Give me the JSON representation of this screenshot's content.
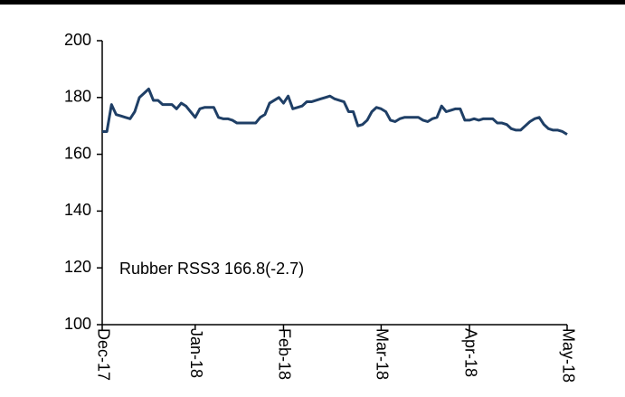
{
  "chart_data": {
    "type": "line",
    "annotation": "Rubber RSS3 166.8(-2.7)",
    "categories": [
      "Dec-17",
      null,
      null,
      null,
      null,
      null,
      null,
      null,
      null,
      null,
      null,
      null,
      null,
      null,
      null,
      null,
      null,
      null,
      null,
      null,
      "Jan-18",
      null,
      null,
      null,
      null,
      null,
      null,
      null,
      null,
      null,
      null,
      null,
      null,
      null,
      null,
      null,
      null,
      null,
      null,
      "Feb-18",
      null,
      null,
      null,
      null,
      null,
      null,
      null,
      null,
      null,
      null,
      null,
      null,
      null,
      null,
      null,
      null,
      null,
      null,
      null,
      null,
      "Mar-18",
      null,
      null,
      null,
      null,
      null,
      null,
      null,
      null,
      null,
      null,
      null,
      null,
      null,
      null,
      null,
      null,
      null,
      null,
      "Apr-18",
      null,
      null,
      null,
      null,
      null,
      null,
      null,
      null,
      null,
      null,
      null,
      null,
      null,
      null,
      null,
      null,
      null,
      null,
      null,
      null,
      "May-18"
    ],
    "values": [
      168,
      168,
      177.5,
      174,
      173.5,
      173,
      172.5,
      175,
      180,
      181.5,
      183,
      179,
      179,
      177.5,
      177.5,
      177.5,
      176,
      178,
      177,
      175,
      173,
      176,
      176.5,
      176.5,
      176.5,
      173,
      172.5,
      172.5,
      172,
      171,
      171,
      171,
      171,
      171,
      173,
      174,
      178,
      179,
      180,
      178,
      180.5,
      176,
      176.5,
      177,
      178.5,
      178.5,
      179,
      179.5,
      180,
      180.5,
      179.5,
      179,
      178.5,
      175,
      175,
      170,
      170.5,
      172,
      175,
      176.5,
      176,
      175,
      172,
      171.5,
      172.5,
      173,
      173,
      173,
      173,
      172,
      171.5,
      172.5,
      173,
      177,
      175,
      175.5,
      176,
      176,
      172,
      172,
      172.5,
      172,
      172.5,
      172.5,
      172.5,
      171,
      171,
      170.5,
      169,
      168.5,
      168.5,
      170,
      171.5,
      172.5,
      173,
      170.5,
      169,
      168.5,
      168.5,
      168,
      167
    ],
    "color": "#1f3f66",
    "ylim": [
      100,
      200
    ],
    "yticks": [
      100,
      120,
      140,
      160,
      180,
      200
    ]
  }
}
